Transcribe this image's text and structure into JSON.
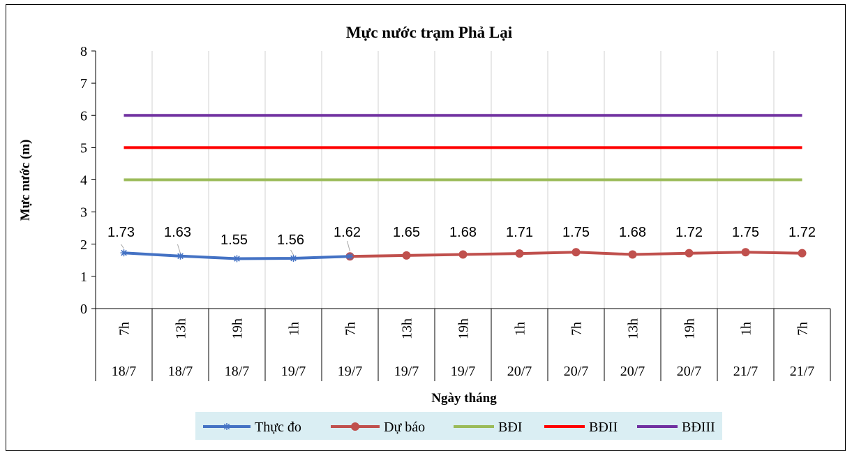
{
  "chart_data": {
    "type": "line",
    "title": "Mực nước trạm Phả Lại",
    "xlabel": "Ngày tháng",
    "ylabel": "Mực nước (m)",
    "ylim": [
      0,
      8
    ],
    "yticks": [
      0,
      1,
      2,
      3,
      4,
      5,
      6,
      7,
      8
    ],
    "grid": "vertical",
    "legend_position": "bottom",
    "categories": [
      {
        "hour": "7h",
        "date": "18/7"
      },
      {
        "hour": "13h",
        "date": "18/7"
      },
      {
        "hour": "19h",
        "date": "18/7"
      },
      {
        "hour": "1h",
        "date": "19/7"
      },
      {
        "hour": "7h",
        "date": "19/7"
      },
      {
        "hour": "13h",
        "date": "19/7"
      },
      {
        "hour": "19h",
        "date": "19/7"
      },
      {
        "hour": "1h",
        "date": "20/7"
      },
      {
        "hour": "7h",
        "date": "20/7"
      },
      {
        "hour": "13h",
        "date": "20/7"
      },
      {
        "hour": "19h",
        "date": "20/7"
      },
      {
        "hour": "1h",
        "date": "21/7"
      },
      {
        "hour": "7h",
        "date": "21/7"
      }
    ],
    "data_labels": [
      "1.73",
      "1.63",
      "1.55",
      "1.56",
      "1.62",
      "1.65",
      "1.68",
      "1.71",
      "1.75",
      "1.68",
      "1.72",
      "1.75",
      "1.72"
    ],
    "series": [
      {
        "name": "Thực đo",
        "color": "#4472C4",
        "marker": "star",
        "values": [
          1.73,
          1.63,
          1.55,
          1.56,
          1.62,
          null,
          null,
          null,
          null,
          null,
          null,
          null,
          null
        ]
      },
      {
        "name": "Dự báo",
        "color": "#C0504D",
        "marker": "circle",
        "values": [
          null,
          null,
          null,
          null,
          1.62,
          1.65,
          1.68,
          1.71,
          1.75,
          1.68,
          1.72,
          1.75,
          1.72
        ]
      },
      {
        "name": "BĐI",
        "color": "#9BBB59",
        "marker": "none",
        "values": [
          4,
          4,
          4,
          4,
          4,
          4,
          4,
          4,
          4,
          4,
          4,
          4,
          4
        ]
      },
      {
        "name": "BĐII",
        "color": "#FF0000",
        "marker": "none",
        "values": [
          5,
          5,
          5,
          5,
          5,
          5,
          5,
          5,
          5,
          5,
          5,
          5,
          5
        ]
      },
      {
        "name": "BĐIII",
        "color": "#7030A0",
        "marker": "none",
        "values": [
          6,
          6,
          6,
          6,
          6,
          6,
          6,
          6,
          6,
          6,
          6,
          6,
          6
        ]
      }
    ],
    "legend_background": "#DAEEF3"
  }
}
